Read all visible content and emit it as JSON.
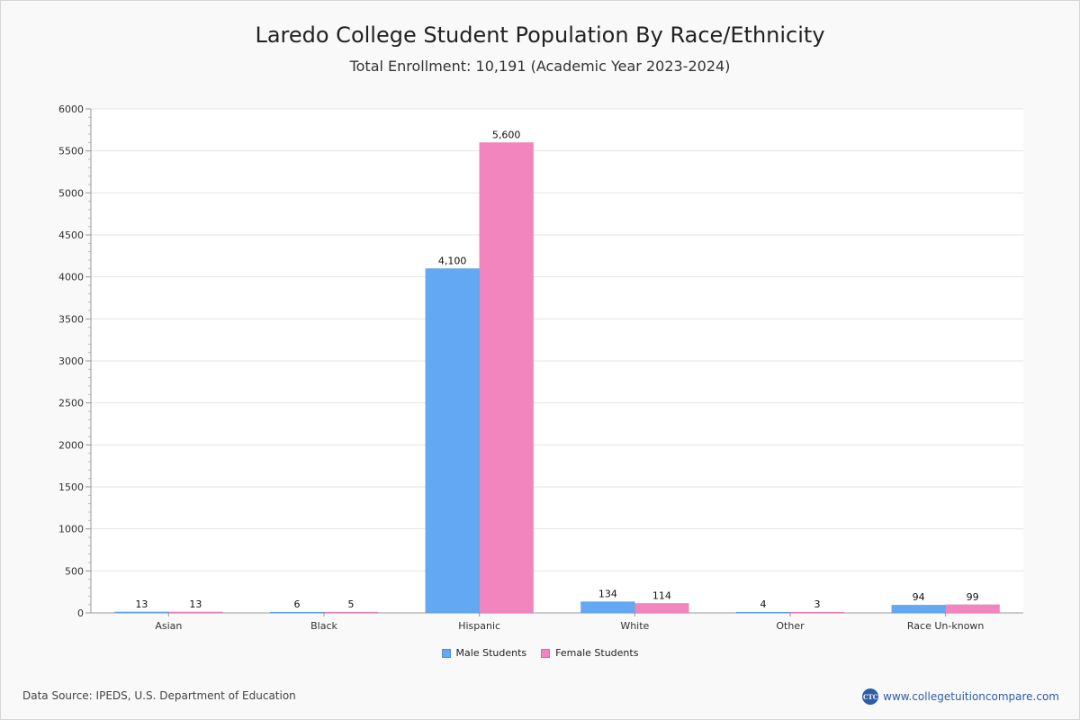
{
  "chart_data": {
    "type": "bar",
    "title": "Laredo College Student Population By Race/Ethnicity",
    "subtitle": "Total Enrollment: 10,191 (Academic Year 2023-2024)",
    "categories": [
      "Asian",
      "Black",
      "Hispanic",
      "White",
      "Other",
      "Race Un-known"
    ],
    "series": [
      {
        "name": "Male Students",
        "color": "#62a8f2",
        "values": [
          13,
          6,
          4100,
          134,
          4,
          94
        ],
        "labels": [
          "13",
          "6",
          "4,100",
          "134",
          "4",
          "94"
        ]
      },
      {
        "name": "Female Students",
        "color": "#f285bd",
        "values": [
          13,
          5,
          5600,
          114,
          3,
          99
        ],
        "labels": [
          "13",
          "5",
          "5,600",
          "114",
          "3",
          "99"
        ]
      }
    ],
    "ylim": [
      0,
      6000
    ],
    "yticks": [
      0,
      500,
      1000,
      1500,
      2000,
      2500,
      3000,
      3500,
      4000,
      4500,
      5000,
      5500,
      6000
    ],
    "xlabel": "",
    "ylabel": "",
    "grid": true,
    "legend_position": "bottom-center"
  },
  "footer": {
    "source": "Data Source: IPEDS, U.S. Department of Education",
    "brand_logo": "CTC",
    "brand_url": "www.collegetuitioncompare.com"
  }
}
